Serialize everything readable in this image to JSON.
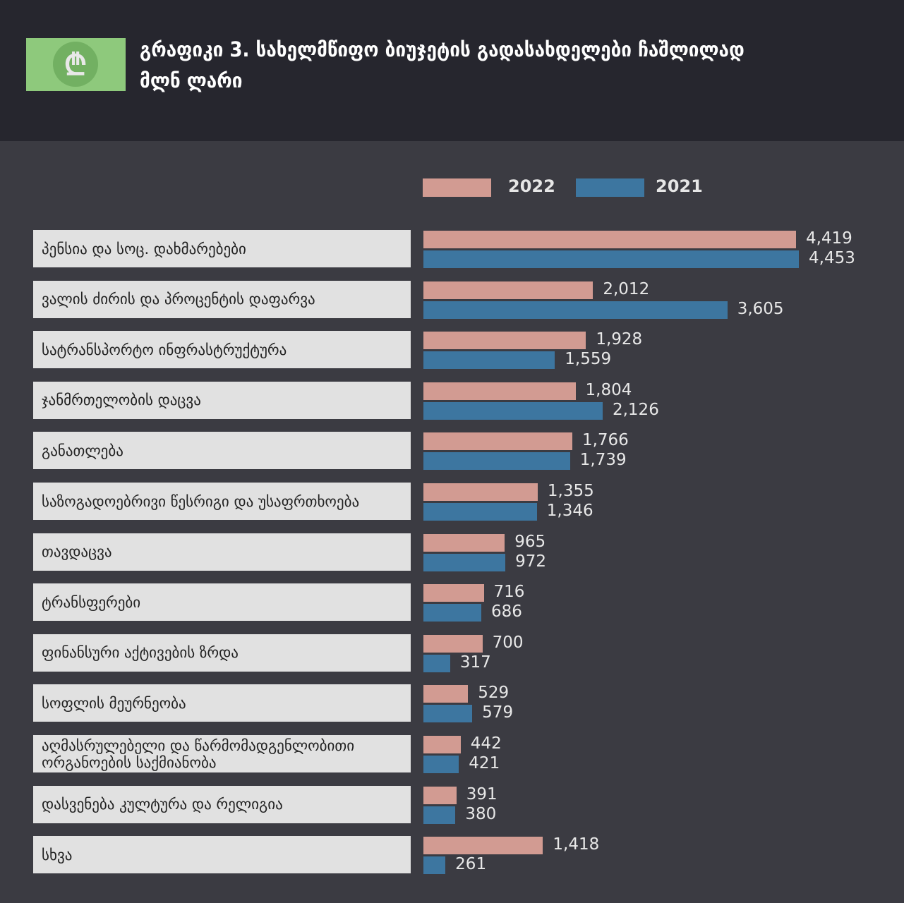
{
  "title": "გრაფიკი 3. სახელმწიფო ბიუჯეტის გადასახდელები ჩაშლილად",
  "subtitle": "მლნ ლარი",
  "colors": {
    "y2022": "#d29b92",
    "y2021": "#3d76a0"
  },
  "chart_data": {
    "type": "bar",
    "orientation": "horizontal",
    "legend": [
      "2022",
      "2021"
    ],
    "legend_position": "top",
    "categories": [
      "პენსია და სოც. დახმარებები",
      "ვალის ძირის და პროცენტის დაფარვა",
      "სატრანსპორტო ინფრასტრუქტურა",
      "ჯანმრთელობის დაცვა",
      "განათლება",
      "საზოგადოებრივი წესრიგი და უსაფრთხოება",
      "თავდაცვა",
      "ტრანსფერები",
      "ფინანსური აქტივების ზრდა",
      "სოფლის მეურნეობა",
      "აღმასრულებელი და წარმომადგენლობითი ორგანოების საქმიანობა",
      "დასვენება კულტურა და რელიგია",
      "სხვა"
    ],
    "series": [
      {
        "name": "2022",
        "values": [
          4419,
          2012,
          1928,
          1804,
          1766,
          1355,
          965,
          716,
          700,
          529,
          442,
          391,
          1418
        ],
        "labels": [
          "4,419",
          "2,012",
          "1,928",
          "1,804",
          "1,766",
          "1,355",
          "965",
          "716",
          "700",
          "529",
          "442",
          "391",
          "1,418"
        ]
      },
      {
        "name": "2021",
        "values": [
          4453,
          3605,
          1559,
          2126,
          1739,
          1346,
          972,
          686,
          317,
          579,
          421,
          380,
          261
        ],
        "labels": [
          "4,453",
          "3,605",
          "1,559",
          "2,126",
          "1,739",
          "1,346",
          "972",
          "686",
          "317",
          "579",
          "421",
          "380",
          "261"
        ]
      }
    ],
    "xlim": [
      0,
      4453
    ]
  }
}
